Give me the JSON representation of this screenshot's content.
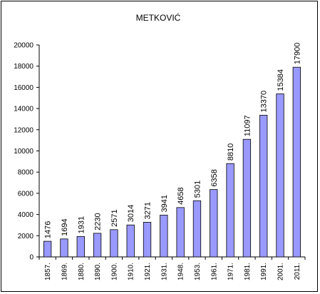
{
  "chart_data": {
    "type": "bar",
    "title": "METKOVIĆ",
    "xlabel": "",
    "ylabel": "",
    "categories": [
      "1857.",
      "1869.",
      "1880.",
      "1890.",
      "1900.",
      "1910.",
      "1921.",
      "1931.",
      "1948.",
      "1953.",
      "1961.",
      "1971.",
      "1981.",
      "1991.",
      "2001.",
      "2011."
    ],
    "values": [
      1476,
      1694,
      1931,
      2230,
      2571,
      3014,
      3271,
      3941,
      4658,
      5301,
      6358,
      8810,
      11097,
      13370,
      15384,
      17900
    ],
    "ylim": [
      0,
      20000
    ],
    "yticks": [
      0,
      2000,
      4000,
      6000,
      8000,
      10000,
      12000,
      14000,
      16000,
      18000,
      20000
    ],
    "grid": false,
    "legend": "none",
    "colors": {
      "bar_fill": "#9999ff",
      "bar_stroke": "#000000",
      "axis": "#000000"
    }
  }
}
